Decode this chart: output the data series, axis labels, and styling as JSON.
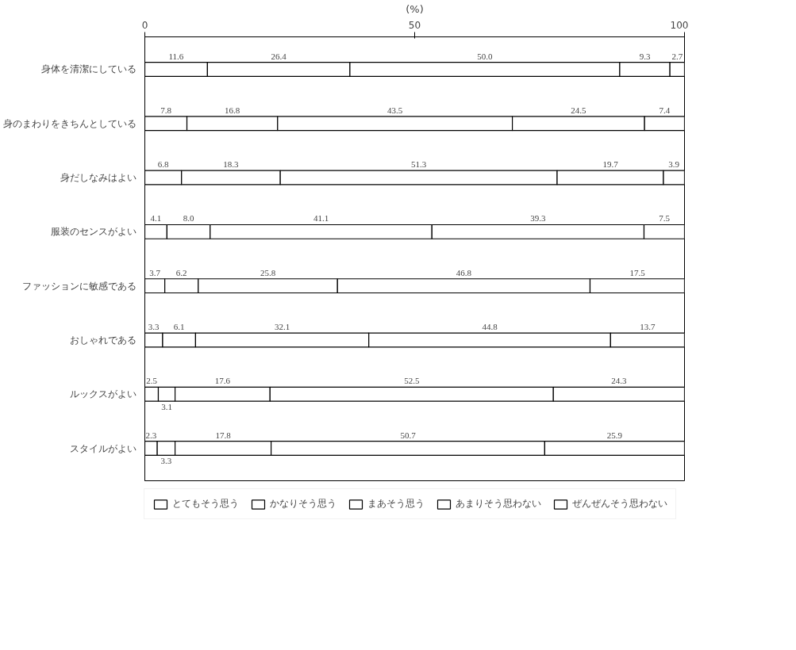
{
  "chart_data": {
    "type": "bar",
    "orientation": "horizontal",
    "stacked": true,
    "xlabel": "(%)",
    "xlim": [
      0,
      100
    ],
    "xticks": [
      0,
      50,
      100
    ],
    "categories": [
      "身体を清潔にしている",
      "身のまわりをきちんとしている",
      "身だしなみはよい",
      "服装のセンスがよい",
      "ファッションに敏感である",
      "おしゃれである",
      "ルックスがよい",
      "スタイルがよい"
    ],
    "series": [
      {
        "name": "とてもそう思う",
        "color": "#ffffff",
        "values": [
          11.6,
          7.8,
          6.8,
          4.1,
          3.7,
          3.3,
          2.5,
          2.3
        ]
      },
      {
        "name": "かなりそう思う",
        "color": "#ffffff",
        "values": [
          26.4,
          16.8,
          18.3,
          8.0,
          6.2,
          6.1,
          3.1,
          3.3
        ],
        "value_labels": [
          "26.4",
          "16.8",
          "18.3",
          "8.0",
          "6.2",
          "6.1",
          "3.1",
          "3.3"
        ]
      },
      {
        "name": "まあそう思う",
        "color": "#ffffff",
        "values": [
          50.0,
          43.5,
          51.3,
          41.1,
          25.8,
          32.1,
          17.6,
          17.8
        ],
        "value_labels": [
          "50.0",
          "43.5",
          "51.3",
          "41.1",
          "25.8",
          "32.1",
          "17.6",
          "17.8"
        ]
      },
      {
        "name": "あまりそう思わない",
        "color": "#ffffff",
        "values": [
          9.3,
          24.5,
          19.7,
          39.3,
          46.8,
          44.8,
          52.5,
          50.7
        ]
      },
      {
        "name": "ぜんぜんそう思わない",
        "color": "#ffffff",
        "values": [
          2.7,
          7.4,
          3.9,
          7.5,
          17.5,
          13.7,
          24.3,
          25.9
        ]
      }
    ],
    "data_labels": true,
    "legend": "bottom",
    "grid": false
  }
}
